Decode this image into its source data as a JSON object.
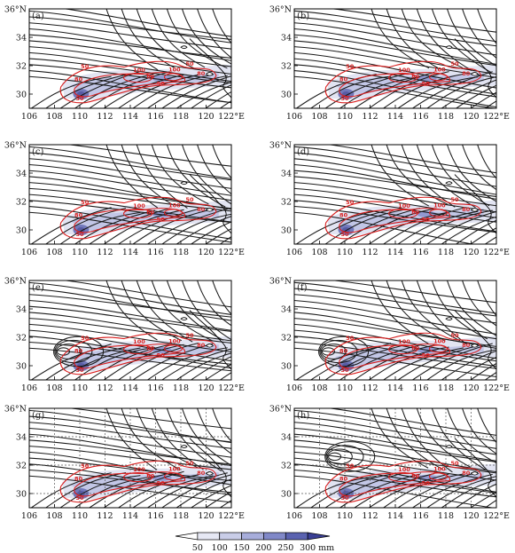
{
  "figure": {
    "panels": [
      {
        "label": "(a)",
        "grid": false
      },
      {
        "label": "(b)",
        "grid": false
      },
      {
        "label": "(c)",
        "grid": false
      },
      {
        "label": "(d)",
        "grid": false
      },
      {
        "label": "(e)",
        "grid": false
      },
      {
        "label": "(f)",
        "grid": false
      },
      {
        "label": "(g)",
        "grid": true
      },
      {
        "label": "(h)",
        "grid": true
      }
    ],
    "x_ticks": [
      "106",
      "108",
      "110",
      "112",
      "114",
      "116",
      "118",
      "120",
      "122°E"
    ],
    "y_ticks": [
      "36°N",
      "34",
      "32",
      "30"
    ],
    "contour_labels": [
      "50",
      "80",
      "100"
    ],
    "colorbar": {
      "ticks": [
        "50",
        "100",
        "150",
        "200",
        "250",
        "300"
      ],
      "unit": "mm",
      "colors": [
        "#ffffff",
        "#e6e8f4",
        "#c9cde8",
        "#a7addb",
        "#8088c8",
        "#5a62b0",
        "#3a3f95"
      ]
    },
    "colors": {
      "streamline": "#1a1a1a",
      "contour": "#d81e1e",
      "precip_light": "#c9cde8",
      "precip_dark": "#3a3f95"
    }
  },
  "chart_data": {
    "type": "map",
    "xlim": [
      106,
      122
    ],
    "ylim": [
      29,
      36
    ],
    "x_ticks": [
      106,
      108,
      110,
      112,
      114,
      116,
      118,
      120,
      122
    ],
    "y_ticks": [
      30,
      32,
      34,
      36
    ],
    "contour_levels": [
      50,
      80,
      100
    ],
    "colorbar_levels": [
      50,
      100,
      150,
      200,
      250,
      300
    ],
    "colorbar_unit": "mm"
  }
}
